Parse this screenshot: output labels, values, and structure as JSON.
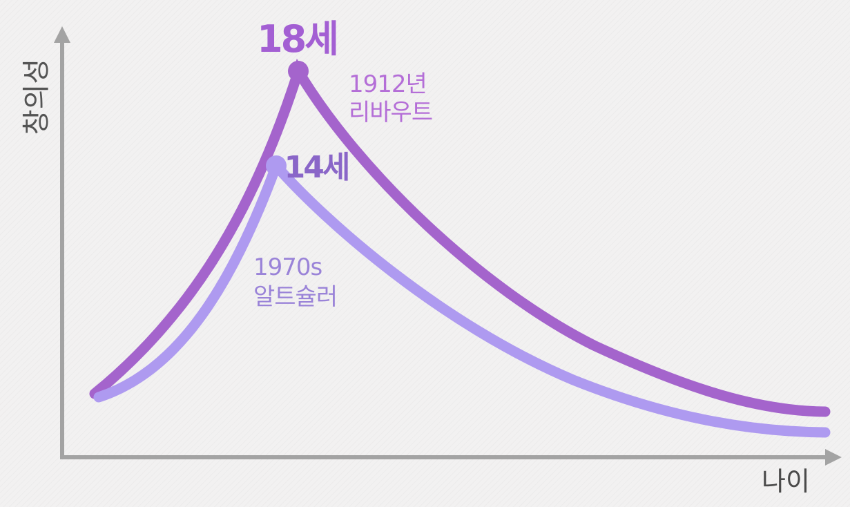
{
  "chart_data": {
    "type": "line",
    "title": "",
    "xlabel": "나이",
    "ylabel": "창의성",
    "grid": false,
    "legend": "none",
    "series": [
      {
        "label": "1912년",
        "label2": "리바우트",
        "color": "#a464cc",
        "peak_label": "18세",
        "peak_label_color": "#a35fd3",
        "label_color": "#b46ed7",
        "peak_age": 18
      },
      {
        "label": "1970s",
        "label2": "알트슐러",
        "color": "#ae9af0",
        "peak_label": "14세",
        "peak_label_color": "#8a66c8",
        "label_color": "#9a83d8",
        "peak_age": 14
      }
    ],
    "colors": {
      "axis": "#a3a3a3",
      "background": "#f2f1f1"
    }
  }
}
